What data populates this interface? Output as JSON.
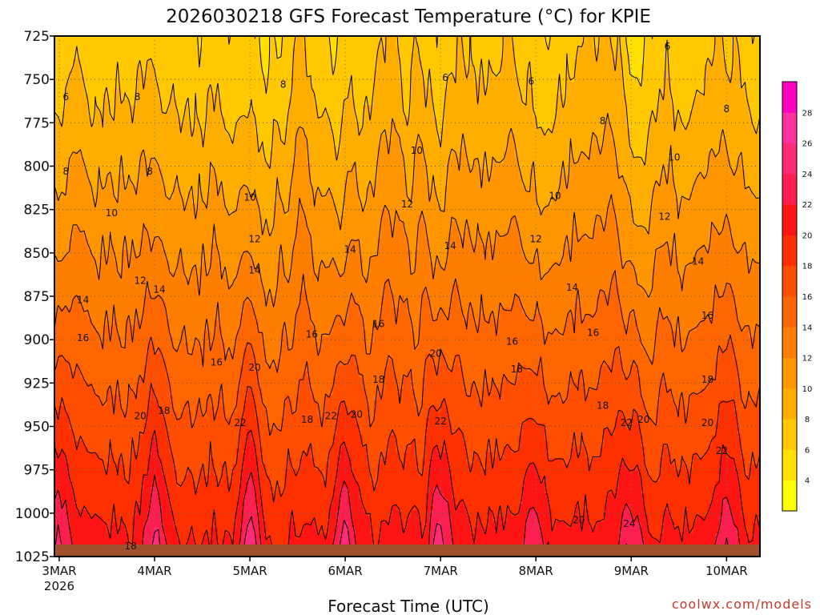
{
  "chart_data": {
    "type": "heatmap",
    "title": "2026030218 GFS Forecast Temperature (°C) for KPIE",
    "xlabel": "Forecast Time (UTC)",
    "ylabel": "",
    "credit": "coolwx.com/models",
    "y_axis": {
      "unit": "hPa",
      "range": [
        1025,
        725
      ],
      "ticks": [
        725,
        750,
        775,
        800,
        825,
        850,
        875,
        900,
        925,
        950,
        975,
        1000,
        1025
      ]
    },
    "x_axis": {
      "range_days": [
        -0.05,
        7.35
      ],
      "ticks": [
        {
          "day": 0,
          "label": "3MAR",
          "sublabel": "2026"
        },
        {
          "day": 1,
          "label": "4MAR",
          "sublabel": ""
        },
        {
          "day": 2,
          "label": "5MAR",
          "sublabel": ""
        },
        {
          "day": 3,
          "label": "6MAR",
          "sublabel": ""
        },
        {
          "day": 4,
          "label": "7MAR",
          "sublabel": ""
        },
        {
          "day": 5,
          "label": "8MAR",
          "sublabel": ""
        },
        {
          "day": 6,
          "label": "9MAR",
          "sublabel": ""
        },
        {
          "day": 7,
          "label": "10MAR",
          "sublabel": ""
        }
      ]
    },
    "colorbar": {
      "levels": [
        2,
        4,
        6,
        8,
        10,
        12,
        14,
        16,
        18,
        20,
        22,
        24,
        26,
        28,
        30
      ],
      "labels": [
        4,
        6,
        8,
        10,
        12,
        14,
        16,
        18,
        20,
        22,
        24,
        26,
        28
      ],
      "colors": [
        "#ffff00",
        "#ffe000",
        "#ffc800",
        "#ffae00",
        "#ff9600",
        "#ff7e00",
        "#ff6600",
        "#ff4e00",
        "#ff3000",
        "#ff1414",
        "#ff1e50",
        "#ff2a78",
        "#ff30a0",
        "#ff00c0"
      ]
    },
    "ground_color": "#a0522d",
    "contour_labels": [
      {
        "day": 0.07,
        "p": 760,
        "v": "6"
      },
      {
        "day": 0.82,
        "p": 760,
        "v": "8"
      },
      {
        "day": 0.07,
        "p": 803,
        "v": "8"
      },
      {
        "day": 0.95,
        "p": 803,
        "v": "8"
      },
      {
        "day": 2.35,
        "p": 753,
        "v": "8"
      },
      {
        "day": 4.05,
        "p": 749,
        "v": "6"
      },
      {
        "day": 4.95,
        "p": 751,
        "v": "6"
      },
      {
        "day": 6.38,
        "p": 731,
        "v": "6"
      },
      {
        "day": 7.0,
        "p": 767,
        "v": "8"
      },
      {
        "day": 5.7,
        "p": 774,
        "v": "8"
      },
      {
        "day": 3.75,
        "p": 791,
        "v": "10"
      },
      {
        "day": 6.45,
        "p": 795,
        "v": "10"
      },
      {
        "day": 5.2,
        "p": 817,
        "v": "10"
      },
      {
        "day": 2.0,
        "p": 818,
        "v": "10"
      },
      {
        "day": 0.55,
        "p": 827,
        "v": "10"
      },
      {
        "day": 3.65,
        "p": 822,
        "v": "12"
      },
      {
        "day": 2.05,
        "p": 842,
        "v": "12"
      },
      {
        "day": 6.35,
        "p": 829,
        "v": "12"
      },
      {
        "day": 5.0,
        "p": 842,
        "v": "12"
      },
      {
        "day": 0.85,
        "p": 866,
        "v": "12"
      },
      {
        "day": 2.05,
        "p": 860,
        "v": "14"
      },
      {
        "day": 3.05,
        "p": 848,
        "v": "14"
      },
      {
        "day": 4.1,
        "p": 846,
        "v": "14"
      },
      {
        "day": 6.7,
        "p": 855,
        "v": "14"
      },
      {
        "day": 5.38,
        "p": 870,
        "v": "14"
      },
      {
        "day": 1.05,
        "p": 871,
        "v": "14"
      },
      {
        "day": 0.25,
        "p": 877,
        "v": "14"
      },
      {
        "day": 0.25,
        "p": 899,
        "v": "16"
      },
      {
        "day": 1.65,
        "p": 913,
        "v": "16"
      },
      {
        "day": 2.65,
        "p": 897,
        "v": "16"
      },
      {
        "day": 3.35,
        "p": 891,
        "v": "16"
      },
      {
        "day": 4.75,
        "p": 901,
        "v": "16"
      },
      {
        "day": 5.6,
        "p": 896,
        "v": "16"
      },
      {
        "day": 6.8,
        "p": 886,
        "v": "16"
      },
      {
        "day": 2.05,
        "p": 916,
        "v": "20"
      },
      {
        "day": 3.35,
        "p": 923,
        "v": "18"
      },
      {
        "day": 3.95,
        "p": 908,
        "v": "20"
      },
      {
        "day": 4.8,
        "p": 917,
        "v": "18"
      },
      {
        "day": 1.1,
        "p": 941,
        "v": "18"
      },
      {
        "day": 0.85,
        "p": 944,
        "v": "20"
      },
      {
        "day": 2.6,
        "p": 946,
        "v": "18"
      },
      {
        "day": 3.12,
        "p": 943,
        "v": "20"
      },
      {
        "day": 5.7,
        "p": 938,
        "v": "18"
      },
      {
        "day": 6.13,
        "p": 946,
        "v": "20"
      },
      {
        "day": 6.8,
        "p": 923,
        "v": "18"
      },
      {
        "day": 1.9,
        "p": 948,
        "v": "22"
      },
      {
        "day": 2.85,
        "p": 944,
        "v": "22"
      },
      {
        "day": 4.0,
        "p": 947,
        "v": "22"
      },
      {
        "day": 5.95,
        "p": 948,
        "v": "22"
      },
      {
        "day": 6.8,
        "p": 948,
        "v": "20"
      },
      {
        "day": 6.95,
        "p": 964,
        "v": "22"
      },
      {
        "day": 5.45,
        "p": 1004,
        "v": "20"
      },
      {
        "day": 5.98,
        "p": 1006,
        "v": "24"
      },
      {
        "day": 0.75,
        "p": 1019,
        "v": "18"
      }
    ]
  }
}
